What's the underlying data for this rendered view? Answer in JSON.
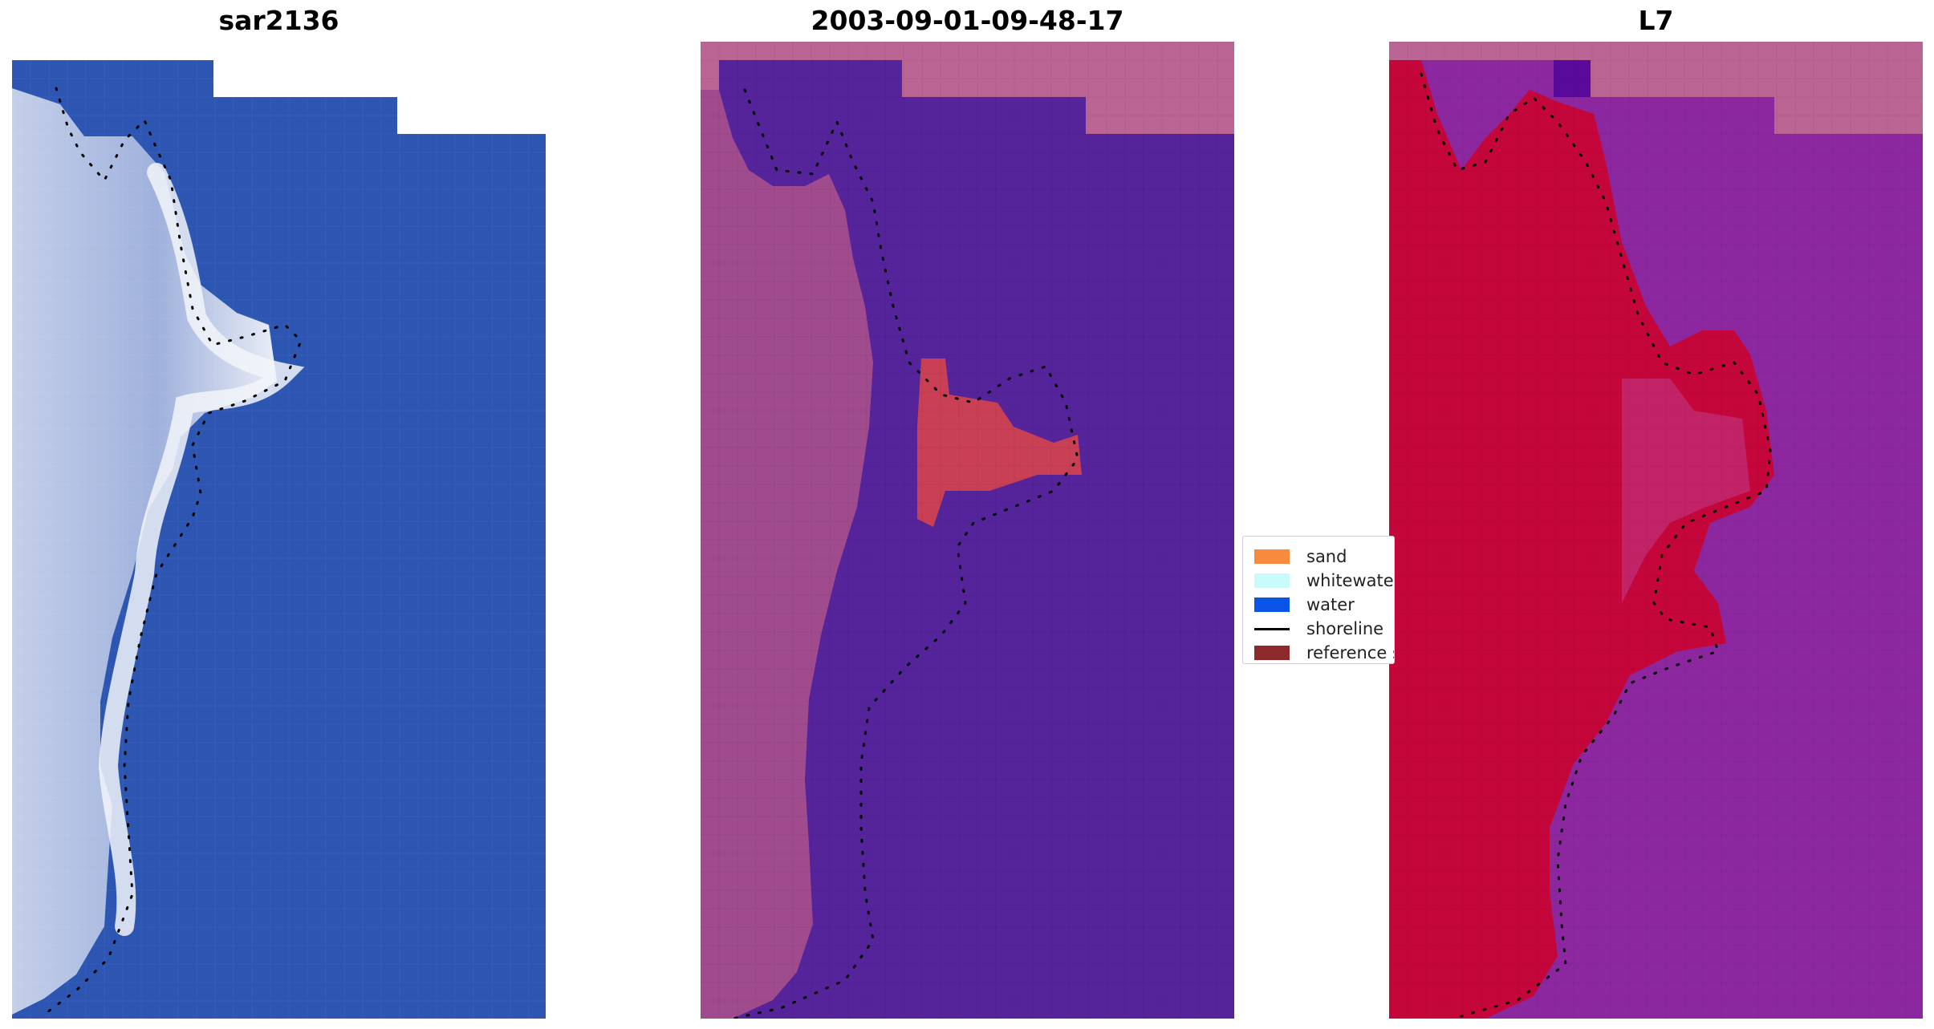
{
  "panels": [
    {
      "title": "sar2136",
      "image": "rgb-satellite-image-coastline"
    },
    {
      "title": "2003-09-01-09-48-17",
      "image": "classified-image-overlay"
    },
    {
      "title": "L7",
      "image": "index-image-overlay"
    }
  ],
  "legend": {
    "items": [
      {
        "label": "sand",
        "color": "#f78a3c",
        "kind": "patch"
      },
      {
        "label": "whitewater",
        "color": "#c8fbf9",
        "kind": "patch"
      },
      {
        "label": "water",
        "color": "#0a55e8",
        "kind": "patch"
      },
      {
        "label": "shoreline",
        "color": "#000000",
        "kind": "line"
      },
      {
        "label": "reference s",
        "color": "#8e2a2c",
        "kind": "patch"
      }
    ]
  },
  "colors": {
    "rgb_water": "#2a55b3",
    "rgb_land": "#a9b9dd",
    "class_water": "#55239a",
    "class_land": "#a04b8e",
    "class_nodata": "#bb6595",
    "index_land": "#c5063a",
    "index_water": "#8c279f",
    "index_nodata": "#bb6595"
  }
}
